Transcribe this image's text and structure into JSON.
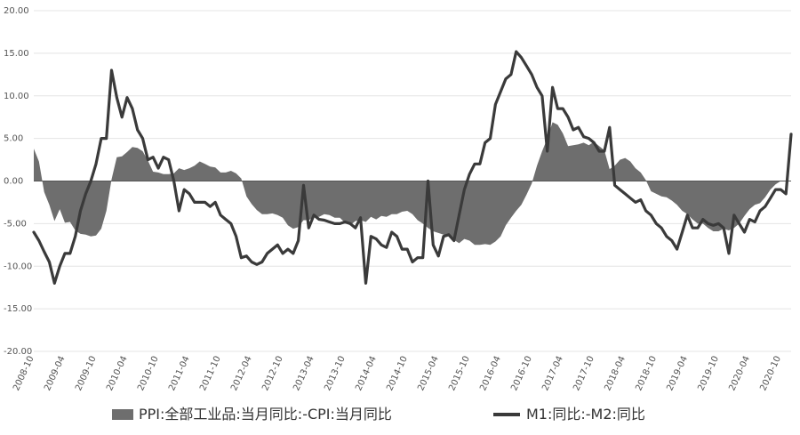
{
  "chart_data": {
    "type": "line",
    "title": "",
    "xlabel": "",
    "ylabel": "",
    "ylim": [
      -20,
      20
    ],
    "yticks": [
      "20.00",
      "15.00",
      "10.00",
      "5.00",
      "0.00",
      "-5.00",
      "-10.00",
      "-15.00",
      "-20.00"
    ],
    "ytick_values": [
      20,
      15,
      10,
      5,
      0,
      -5,
      -10,
      -15,
      -20
    ],
    "grid": true,
    "legend_position": "bottom",
    "x_start": "2008-10",
    "x_end": "2021-02",
    "x_tick_labels": [
      "2008-10",
      "2009-04",
      "2009-10",
      "2010-04",
      "2010-10",
      "2011-04",
      "2011-10",
      "2012-04",
      "2012-10",
      "2013-04",
      "2013-10",
      "2014-04",
      "2014-10",
      "2015-04",
      "2015-10",
      "2016-04",
      "2016-10",
      "2017-04",
      "2017-10",
      "2018-04",
      "2018-10",
      "2019-04",
      "2019-10",
      "2020-04",
      "2020-10"
    ],
    "colors": {
      "area": "#6e6e6e",
      "line": "#3a3a3a",
      "grid": "#e4e4e4"
    },
    "series": [
      {
        "name": "PPI:全部工业品:当月同比:-CPI:当月同比",
        "type": "area",
        "values": [
          3.8,
          2.3,
          -1.3,
          -2.8,
          -4.7,
          -3.3,
          -4.9,
          -4.8,
          -5.8,
          -6.2,
          -6.3,
          -6.5,
          -6.4,
          -5.6,
          -3.5,
          0.2,
          2.8,
          2.9,
          3.4,
          4.0,
          3.9,
          3.5,
          2.4,
          1.1,
          1.0,
          0.8,
          0.8,
          0.9,
          1.5,
          1.3,
          1.5,
          1.8,
          2.3,
          2.0,
          1.7,
          1.6,
          1.0,
          1.0,
          1.2,
          0.9,
          0.3,
          -1.8,
          -2.7,
          -3.4,
          -3.9,
          -3.9,
          -3.8,
          -4.0,
          -4.3,
          -5.2,
          -5.6,
          -5.4,
          -4.6,
          -4.6,
          -4.2,
          -4.2,
          -3.9,
          -4.0,
          -4.3,
          -4.3,
          -4.9,
          -5.2,
          -4.7,
          -4.6,
          -4.8,
          -4.2,
          -4.5,
          -4.1,
          -4.2,
          -3.9,
          -3.9,
          -3.6,
          -3.5,
          -3.9,
          -4.6,
          -5.0,
          -5.5,
          -5.9,
          -6.1,
          -6.3,
          -6.5,
          -6.9,
          -7.3,
          -6.8,
          -7.0,
          -7.5,
          -7.5,
          -7.4,
          -7.5,
          -7.1,
          -6.5,
          -5.2,
          -4.3,
          -3.5,
          -2.8,
          -1.6,
          -0.3,
          1.8,
          3.5,
          5.0,
          6.9,
          6.6,
          5.6,
          4.1,
          4.2,
          4.3,
          4.5,
          4.2,
          4.6,
          4.1,
          3.6,
          1.4,
          1.8,
          2.5,
          2.7,
          2.3,
          1.5,
          1.0,
          0.1,
          -1.2,
          -1.5,
          -1.8,
          -1.9,
          -2.3,
          -2.8,
          -3.5,
          -3.9,
          -4.5,
          -5.0,
          -5.0,
          -5.5,
          -5.9,
          -5.9,
          -5.6,
          -5.8,
          -5.5,
          -5.0,
          -4.1,
          -3.3,
          -2.8,
          -2.6,
          -1.9,
          -1.0,
          -0.4,
          0.0
        ]
      },
      {
        "name": "M1:同比:-M2:同比",
        "type": "line",
        "values": [
          -6.0,
          -7.0,
          -8.3,
          -9.5,
          -12.0,
          -10.0,
          -8.5,
          -8.5,
          -6.5,
          -3.5,
          -1.5,
          0.0,
          2.0,
          5.0,
          5.0,
          13.0,
          9.8,
          7.5,
          9.8,
          8.5,
          6.0,
          5.0,
          2.5,
          2.8,
          1.5,
          2.8,
          2.5,
          0.0,
          -3.5,
          -1.0,
          -1.5,
          -2.5,
          -2.5,
          -2.5,
          -3.0,
          -2.5,
          -4.0,
          -4.5,
          -5.0,
          -6.5,
          -9.0,
          -8.8,
          -9.5,
          -9.8,
          -9.5,
          -8.5,
          -8.0,
          -7.5,
          -8.5,
          -8.0,
          -8.5,
          -7.0,
          -0.5,
          -5.5,
          -4.0,
          -4.5,
          -4.6,
          -4.8,
          -5.0,
          -5.0,
          -4.8,
          -5.0,
          -5.5,
          -4.3,
          -12.0,
          -6.5,
          -6.8,
          -7.5,
          -7.8,
          -6.0,
          -6.5,
          -8.0,
          -8.0,
          -9.5,
          -9.0,
          -9.0,
          0.0,
          -7.5,
          -8.8,
          -6.5,
          -6.3,
          -7.0,
          -4.0,
          -1.0,
          0.8,
          2.0,
          2.0,
          4.5,
          5.0,
          9.0,
          10.5,
          12.0,
          12.5,
          15.2,
          14.5,
          13.5,
          12.5,
          11.0,
          10.0,
          3.5,
          11.0,
          8.5,
          8.5,
          7.5,
          6.0,
          6.3,
          5.2,
          5.0,
          4.5,
          3.5,
          3.5,
          6.3,
          -0.5,
          -1.0,
          -1.5,
          -2.0,
          -2.5,
          -2.2,
          -3.5,
          -4.0,
          -5.0,
          -5.5,
          -6.5,
          -7.0,
          -8.0,
          -6.0,
          -4.0,
          -5.5,
          -5.5,
          -4.5,
          -5.0,
          -5.2,
          -5.0,
          -5.5,
          -8.5,
          -4.0,
          -5.0,
          -6.0,
          -4.5,
          -4.8,
          -3.5,
          -3.0,
          -2.0,
          -1.0,
          -1.0,
          -1.5,
          5.5
        ]
      }
    ]
  }
}
